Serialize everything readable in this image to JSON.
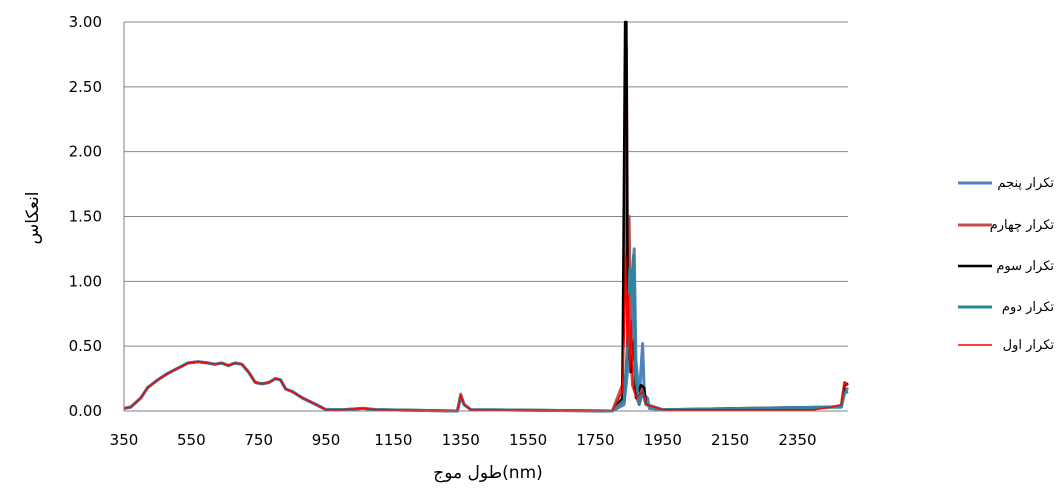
{
  "chart_data": {
    "type": "line",
    "xlabel": "طول موج(nm)",
    "ylabel": "انعکاس",
    "xlim": [
      350,
      2500
    ],
    "ylim": [
      0,
      3.0
    ],
    "x_ticks": [
      "350",
      "550",
      "750",
      "950",
      "1150",
      "1350",
      "1550",
      "1750",
      "1950",
      "2150",
      "2350"
    ],
    "y_ticks": [
      "0.00",
      "0.50",
      "1.00",
      "1.50",
      "2.00",
      "2.50",
      "3.00"
    ],
    "grid": "horizontal",
    "legend_position": "right",
    "colors": {
      "series1": "#4f81bd",
      "series2": "#c0504d",
      "series3": "#000000",
      "series4": "#31849b",
      "series5": "#ff0000"
    },
    "series": [
      {
        "name": "تکرار پنجم",
        "color": "#4f81bd",
        "width": 3,
        "points": [
          [
            350,
            0.02
          ],
          [
            370,
            0.03
          ],
          [
            400,
            0.1
          ],
          [
            420,
            0.18
          ],
          [
            450,
            0.24
          ],
          [
            480,
            0.29
          ],
          [
            510,
            0.33
          ],
          [
            540,
            0.37
          ],
          [
            570,
            0.38
          ],
          [
            600,
            0.37
          ],
          [
            620,
            0.36
          ],
          [
            640,
            0.37
          ],
          [
            660,
            0.35
          ],
          [
            680,
            0.37
          ],
          [
            700,
            0.36
          ],
          [
            720,
            0.3
          ],
          [
            740,
            0.22
          ],
          [
            760,
            0.21
          ],
          [
            780,
            0.22
          ],
          [
            800,
            0.25
          ],
          [
            815,
            0.24
          ],
          [
            830,
            0.17
          ],
          [
            850,
            0.15
          ],
          [
            880,
            0.1
          ],
          [
            920,
            0.05
          ],
          [
            950,
            0.01
          ],
          [
            1000,
            0.01
          ],
          [
            1060,
            0.02
          ],
          [
            1100,
            0.01
          ],
          [
            1340,
            0.0
          ],
          [
            1350,
            0.13
          ],
          [
            1360,
            0.05
          ],
          [
            1380,
            0.01
          ],
          [
            1800,
            0.0
          ],
          [
            1835,
            0.05
          ],
          [
            1845,
            0.3
          ],
          [
            1850,
            0.9
          ],
          [
            1855,
            0.3
          ],
          [
            1860,
            1.0
          ],
          [
            1865,
            1.25
          ],
          [
            1870,
            0.4
          ],
          [
            1880,
            0.1
          ],
          [
            1890,
            0.52
          ],
          [
            1895,
            0.12
          ],
          [
            1905,
            0.1
          ],
          [
            1910,
            0.02
          ],
          [
            1950,
            0.01
          ],
          [
            2450,
            0.03
          ],
          [
            2480,
            0.03
          ],
          [
            2490,
            0.15
          ],
          [
            2500,
            0.18
          ]
        ]
      },
      {
        "name": "تکرار چهارم",
        "color": "#c0504d",
        "width": 3,
        "points": [
          [
            350,
            0.02
          ],
          [
            370,
            0.03
          ],
          [
            400,
            0.1
          ],
          [
            420,
            0.18
          ],
          [
            450,
            0.24
          ],
          [
            480,
            0.29
          ],
          [
            510,
            0.33
          ],
          [
            540,
            0.37
          ],
          [
            570,
            0.38
          ],
          [
            600,
            0.37
          ],
          [
            620,
            0.36
          ],
          [
            640,
            0.37
          ],
          [
            660,
            0.35
          ],
          [
            680,
            0.37
          ],
          [
            700,
            0.36
          ],
          [
            720,
            0.3
          ],
          [
            740,
            0.22
          ],
          [
            760,
            0.21
          ],
          [
            780,
            0.22
          ],
          [
            800,
            0.25
          ],
          [
            815,
            0.24
          ],
          [
            830,
            0.17
          ],
          [
            850,
            0.15
          ],
          [
            880,
            0.1
          ],
          [
            920,
            0.05
          ],
          [
            950,
            0.01
          ],
          [
            1000,
            0.01
          ],
          [
            1060,
            0.02
          ],
          [
            1100,
            0.01
          ],
          [
            1340,
            0.0
          ],
          [
            1350,
            0.12
          ],
          [
            1360,
            0.05
          ],
          [
            1380,
            0.01
          ],
          [
            1800,
            0.0
          ],
          [
            1830,
            0.2
          ],
          [
            1838,
            1.5
          ],
          [
            1842,
            2.8
          ],
          [
            1846,
            0.8
          ],
          [
            1850,
            1.5
          ],
          [
            1855,
            0.5
          ],
          [
            1860,
            0.2
          ],
          [
            1880,
            0.05
          ],
          [
            1890,
            0.18
          ],
          [
            1900,
            0.05
          ],
          [
            1950,
            0.01
          ],
          [
            2450,
            0.03
          ],
          [
            2480,
            0.04
          ],
          [
            2490,
            0.22
          ],
          [
            2500,
            0.2
          ]
        ]
      },
      {
        "name": "تکرار سوم",
        "color": "#000000",
        "width": 2.5,
        "points": [
          [
            350,
            0.02
          ],
          [
            370,
            0.03
          ],
          [
            400,
            0.1
          ],
          [
            420,
            0.18
          ],
          [
            450,
            0.24
          ],
          [
            480,
            0.29
          ],
          [
            510,
            0.33
          ],
          [
            540,
            0.37
          ],
          [
            570,
            0.38
          ],
          [
            600,
            0.37
          ],
          [
            620,
            0.36
          ],
          [
            640,
            0.37
          ],
          [
            660,
            0.35
          ],
          [
            680,
            0.37
          ],
          [
            700,
            0.36
          ],
          [
            720,
            0.3
          ],
          [
            740,
            0.22
          ],
          [
            760,
            0.21
          ],
          [
            780,
            0.22
          ],
          [
            800,
            0.25
          ],
          [
            815,
            0.24
          ],
          [
            830,
            0.17
          ],
          [
            850,
            0.15
          ],
          [
            880,
            0.1
          ],
          [
            920,
            0.05
          ],
          [
            950,
            0.01
          ],
          [
            1000,
            0.01
          ],
          [
            1060,
            0.02
          ],
          [
            1100,
            0.01
          ],
          [
            1340,
            0.0
          ],
          [
            1350,
            0.1
          ],
          [
            1360,
            0.05
          ],
          [
            1380,
            0.01
          ],
          [
            1800,
            0.0
          ],
          [
            1830,
            0.1
          ],
          [
            1838,
            3.0
          ],
          [
            1842,
            3.0
          ],
          [
            1846,
            0.6
          ],
          [
            1855,
            0.3
          ],
          [
            1865,
            0.55
          ],
          [
            1870,
            0.1
          ],
          [
            1885,
            0.2
          ],
          [
            1895,
            0.18
          ],
          [
            1900,
            0.05
          ],
          [
            1950,
            0.01
          ],
          [
            2450,
            0.03
          ],
          [
            2480,
            0.03
          ],
          [
            2490,
            0.2
          ],
          [
            2500,
            0.21
          ]
        ]
      },
      {
        "name": "تکرار دوم",
        "color": "#31849b",
        "width": 3,
        "points": [
          [
            350,
            0.02
          ],
          [
            370,
            0.03
          ],
          [
            400,
            0.1
          ],
          [
            420,
            0.18
          ],
          [
            450,
            0.24
          ],
          [
            480,
            0.29
          ],
          [
            510,
            0.33
          ],
          [
            540,
            0.37
          ],
          [
            570,
            0.38
          ],
          [
            600,
            0.37
          ],
          [
            620,
            0.36
          ],
          [
            640,
            0.37
          ],
          [
            660,
            0.35
          ],
          [
            680,
            0.37
          ],
          [
            700,
            0.36
          ],
          [
            720,
            0.3
          ],
          [
            740,
            0.22
          ],
          [
            760,
            0.21
          ],
          [
            780,
            0.22
          ],
          [
            800,
            0.25
          ],
          [
            815,
            0.24
          ],
          [
            830,
            0.17
          ],
          [
            850,
            0.15
          ],
          [
            880,
            0.1
          ],
          [
            920,
            0.05
          ],
          [
            950,
            0.01
          ],
          [
            1000,
            0.01
          ],
          [
            1060,
            0.02
          ],
          [
            1100,
            0.01
          ],
          [
            1340,
            0.0
          ],
          [
            1350,
            0.11
          ],
          [
            1360,
            0.05
          ],
          [
            1380,
            0.01
          ],
          [
            1800,
            0.0
          ],
          [
            1835,
            0.08
          ],
          [
            1845,
            0.5
          ],
          [
            1852,
            1.1
          ],
          [
            1858,
            0.9
          ],
          [
            1863,
            1.2
          ],
          [
            1868,
            0.3
          ],
          [
            1880,
            0.05
          ],
          [
            1890,
            0.15
          ],
          [
            1900,
            0.05
          ],
          [
            1950,
            0.01
          ],
          [
            2450,
            0.03
          ],
          [
            2480,
            0.03
          ],
          [
            2490,
            0.14
          ],
          [
            2500,
            0.15
          ]
        ]
      },
      {
        "name": "تکرار اول",
        "color": "#ff0000",
        "width": 1.5,
        "points": [
          [
            350,
            0.02
          ],
          [
            370,
            0.03
          ],
          [
            400,
            0.1
          ],
          [
            420,
            0.18
          ],
          [
            450,
            0.24
          ],
          [
            480,
            0.29
          ],
          [
            510,
            0.33
          ],
          [
            540,
            0.37
          ],
          [
            570,
            0.38
          ],
          [
            600,
            0.37
          ],
          [
            620,
            0.36
          ],
          [
            640,
            0.37
          ],
          [
            660,
            0.35
          ],
          [
            680,
            0.37
          ],
          [
            700,
            0.36
          ],
          [
            720,
            0.3
          ],
          [
            740,
            0.22
          ],
          [
            760,
            0.21
          ],
          [
            780,
            0.22
          ],
          [
            800,
            0.25
          ],
          [
            815,
            0.24
          ],
          [
            830,
            0.17
          ],
          [
            850,
            0.15
          ],
          [
            880,
            0.1
          ],
          [
            920,
            0.05
          ],
          [
            950,
            0.01
          ],
          [
            1000,
            0.01
          ],
          [
            1060,
            0.02
          ],
          [
            1100,
            0.01
          ],
          [
            1340,
            0.0
          ],
          [
            1350,
            0.12
          ],
          [
            1360,
            0.05
          ],
          [
            1380,
            0.01
          ],
          [
            1800,
            0.0
          ],
          [
            1830,
            0.15
          ],
          [
            1836,
            0.6
          ],
          [
            1840,
            1.2
          ],
          [
            1844,
            0.5
          ],
          [
            1848,
            0.9
          ],
          [
            1852,
            0.3
          ],
          [
            1856,
            0.7
          ],
          [
            1862,
            0.2
          ],
          [
            1870,
            0.1
          ],
          [
            1890,
            0.15
          ],
          [
            1900,
            0.05
          ],
          [
            1950,
            0.01
          ],
          [
            2400,
            0.01
          ],
          [
            2450,
            0.03
          ],
          [
            2480,
            0.05
          ],
          [
            2490,
            0.22
          ],
          [
            2500,
            0.2
          ]
        ]
      }
    ]
  }
}
